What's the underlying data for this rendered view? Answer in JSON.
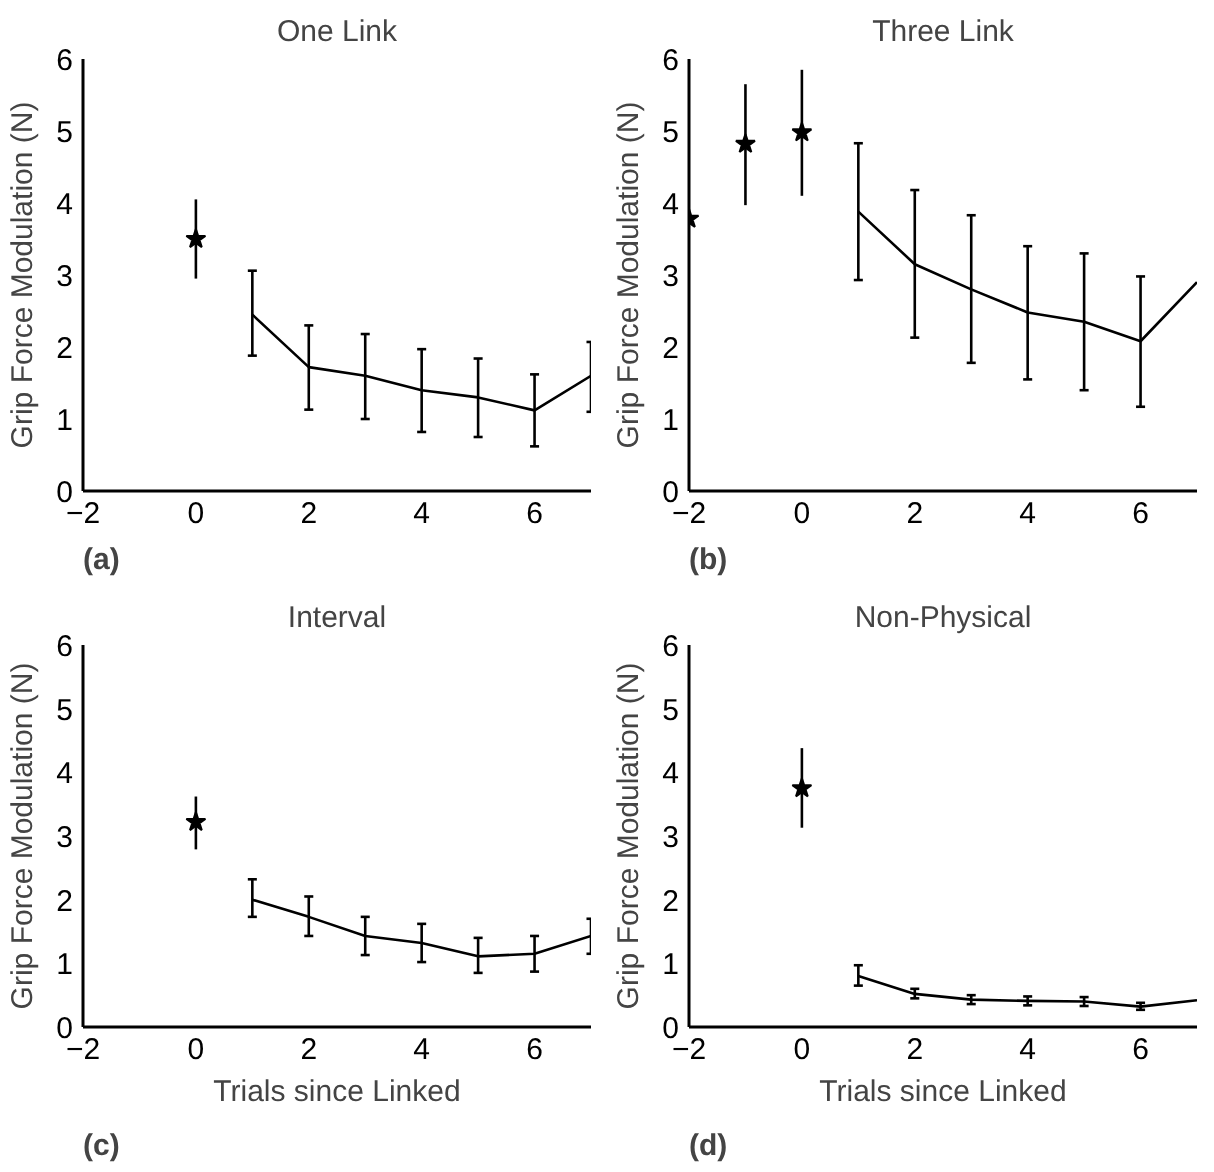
{
  "chart_data": [
    {
      "type": "line",
      "title": "One Link",
      "ylabel": "Grip Force Modulation (N)",
      "annotations": [
        "(a)"
      ],
      "xlim": [
        -2,
        7
      ],
      "xticks": [
        -2,
        0,
        2,
        4,
        6
      ],
      "ylim": [
        0,
        6
      ],
      "yticks": [
        0,
        1,
        2,
        3,
        4,
        5,
        6
      ],
      "grid": false,
      "series": [
        {
          "type": "scatter",
          "marker": "star",
          "color": "#000000",
          "x": [
            0
          ],
          "values": [
            3.5
          ],
          "errors": [
            [
              2.95,
              4.05
            ]
          ]
        },
        {
          "marker": "none",
          "color": "#000000",
          "x": [
            1,
            2,
            3,
            4,
            5,
            6,
            7
          ],
          "values": [
            2.45,
            1.72,
            1.6,
            1.4,
            1.3,
            1.12,
            1.6
          ],
          "errors": [
            [
              1.88,
              3.06
            ],
            [
              1.13,
              2.3
            ],
            [
              1.0,
              2.18
            ],
            [
              0.82,
              1.97
            ],
            [
              0.75,
              1.84
            ],
            [
              0.62,
              1.62
            ],
            [
              1.1,
              2.07
            ]
          ]
        }
      ]
    },
    {
      "type": "line",
      "title": "Three Link",
      "ylabel": "Grip Force Modulation (N)",
      "annotations": [
        "(b)"
      ],
      "xlim": [
        -2,
        7
      ],
      "xticks": [
        -2,
        0,
        2,
        4,
        6
      ],
      "ylim": [
        0,
        6
      ],
      "yticks": [
        0,
        1,
        2,
        3,
        4,
        5,
        6
      ],
      "grid": false,
      "series": [
        {
          "type": "scatter",
          "marker": "star",
          "color": "#000000",
          "x": [
            -2,
            -1,
            0
          ],
          "values": [
            3.78,
            4.82,
            4.98
          ],
          "errors": [
            null,
            [
              3.97,
              5.65
            ],
            [
              4.1,
              5.85
            ]
          ]
        },
        {
          "marker": "none",
          "color": "#000000",
          "x": [
            1,
            2,
            3,
            4,
            5,
            6,
            7
          ],
          "values": [
            3.88,
            3.15,
            2.8,
            2.48,
            2.35,
            2.08,
            2.9
          ],
          "errors": [
            [
              2.93,
              4.83
            ],
            [
              2.13,
              4.18
            ],
            [
              1.78,
              3.83
            ],
            [
              1.55,
              3.4
            ],
            [
              1.4,
              3.3
            ],
            [
              1.17,
              2.98
            ],
            null
          ]
        }
      ]
    },
    {
      "type": "line",
      "title": "Interval",
      "ylabel": "Grip Force Modulation (N)",
      "xlabel": "Trials since Linked",
      "annotations": [
        "(c)"
      ],
      "xlim": [
        -2,
        7
      ],
      "xticks": [
        -2,
        0,
        2,
        4,
        6
      ],
      "ylim": [
        0,
        6
      ],
      "yticks": [
        0,
        1,
        2,
        3,
        4,
        5,
        6
      ],
      "grid": false,
      "series": [
        {
          "type": "scatter",
          "marker": "star",
          "color": "#000000",
          "x": [
            0
          ],
          "values": [
            3.22
          ],
          "errors": [
            [
              2.79,
              3.62
            ]
          ]
        },
        {
          "marker": "none",
          "color": "#000000",
          "x": [
            1,
            2,
            3,
            4,
            5,
            6,
            7
          ],
          "values": [
            2.0,
            1.73,
            1.43,
            1.32,
            1.11,
            1.15,
            1.43
          ],
          "errors": [
            [
              1.73,
              2.32
            ],
            [
              1.43,
              2.05
            ],
            [
              1.13,
              1.73
            ],
            [
              1.02,
              1.62
            ],
            [
              0.85,
              1.4
            ],
            [
              0.87,
              1.43
            ],
            [
              1.15,
              1.7
            ]
          ]
        }
      ]
    },
    {
      "type": "line",
      "title": "Non-Physical",
      "ylabel": "Grip Force Modulation (N)",
      "xlabel": "Trials since Linked",
      "annotations": [
        "(d)"
      ],
      "xlim": [
        -2,
        7
      ],
      "xticks": [
        -2,
        0,
        2,
        4,
        6
      ],
      "ylim": [
        0,
        6
      ],
      "yticks": [
        0,
        1,
        2,
        3,
        4,
        5,
        6
      ],
      "grid": false,
      "series": [
        {
          "type": "scatter",
          "marker": "star",
          "color": "#000000",
          "x": [
            0
          ],
          "values": [
            3.75
          ],
          "errors": [
            [
              3.13,
              4.38
            ]
          ]
        },
        {
          "marker": "none",
          "color": "#000000",
          "x": [
            1,
            2,
            3,
            4,
            5,
            6,
            7
          ],
          "values": [
            0.8,
            0.52,
            0.43,
            0.41,
            0.4,
            0.32,
            0.42
          ],
          "errors": [
            [
              0.65,
              0.97
            ],
            [
              0.45,
              0.6
            ],
            [
              0.36,
              0.5
            ],
            [
              0.34,
              0.48
            ],
            [
              0.33,
              0.47
            ],
            [
              0.27,
              0.38
            ],
            null
          ]
        }
      ]
    }
  ]
}
